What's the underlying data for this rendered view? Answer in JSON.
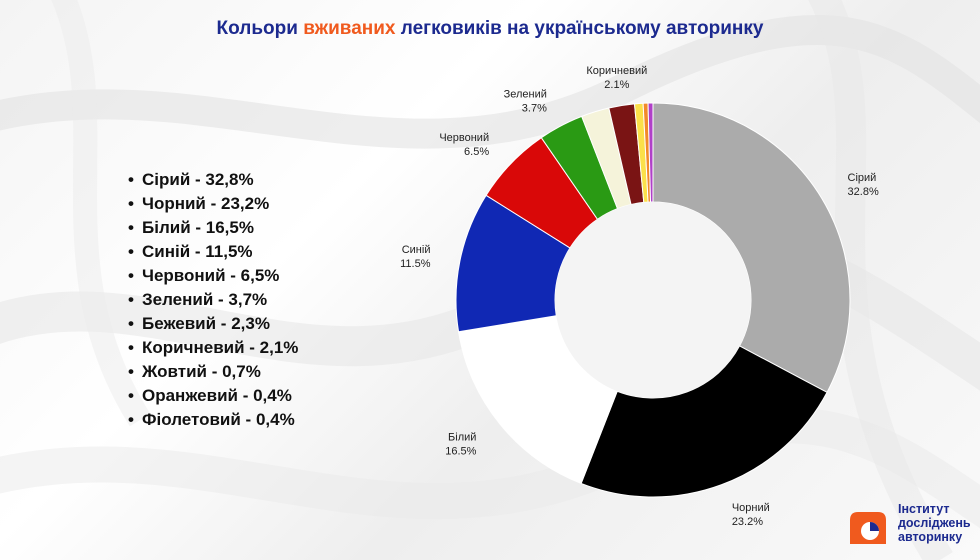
{
  "title": {
    "part1": "Кольори ",
    "accent": "вживаних",
    "part2": " легковиків на українському авторинку",
    "accent_color": "#f05a1e",
    "color": "#1c2a8f"
  },
  "legend_items": [
    "Сірий - 32,8%",
    "Чорний - 23,2%",
    "Білий - 16,5%",
    "Синій - 11,5%",
    "Червоний - 6,5%",
    "Зелений - 3,7%",
    "Бежевий - 2,3%",
    "Коричневий - 2,1%",
    "Жовтий - 0,7%",
    "Оранжевий - 0,4%",
    "Фіолетовий - 0,4%"
  ],
  "chart_data": {
    "type": "pie",
    "donut": true,
    "labels": [
      "Сірий",
      "Чорний",
      "Білий",
      "Синій",
      "Червоний",
      "Зелений",
      "Бежевий",
      "Коричневий",
      "Жовтий",
      "Оранжевий",
      "Фіолетовий"
    ],
    "values": [
      32.8,
      23.2,
      16.5,
      11.5,
      6.5,
      3.7,
      2.3,
      2.1,
      0.7,
      0.4,
      0.4
    ],
    "value_labels": [
      "32.8%",
      "23.2%",
      "16.5%",
      "11.5%",
      "6.5%",
      "3.7%",
      "",
      "2.1%",
      "",
      "",
      ""
    ],
    "colors": [
      "#ababab",
      "#000000",
      "#ffffff",
      "#1028b4",
      "#d90808",
      "#2a9a14",
      "#f5f3da",
      "#7a1414",
      "#fbe04a",
      "#f28a2a",
      "#b040c8"
    ],
    "legend": "left"
  },
  "logo": {
    "line1": "Інститут",
    "line2": "досліджень",
    "line3": "авторинку",
    "color": "#f05a1e"
  }
}
